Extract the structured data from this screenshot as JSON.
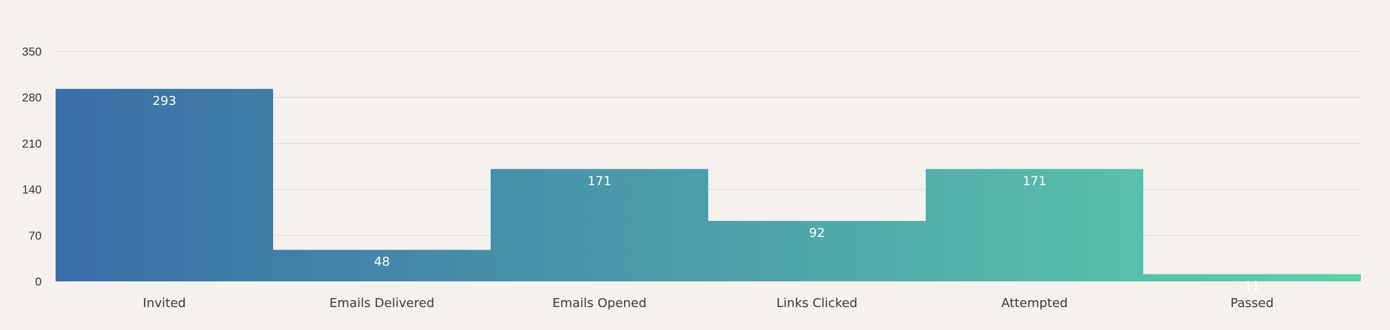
{
  "chart_data": {
    "type": "bar",
    "title": "",
    "xlabel": "",
    "ylabel": "",
    "categories": [
      "Invited",
      "Emails Delivered",
      "Emails Opened",
      "Links Clicked",
      "Attempted",
      "Passed"
    ],
    "values": [
      293,
      48,
      171,
      92,
      171,
      11
    ],
    "ylim": [
      0,
      350
    ],
    "yticks": [
      0,
      70,
      140,
      210,
      280,
      350
    ],
    "grid": true,
    "legend": "none",
    "colors": {
      "gradient_start": "#3a6ea8",
      "gradient_end": "#5ed1ab",
      "value_label": "#ffffff",
      "background": "#f5f1ed",
      "grid": "#dcd8d4"
    }
  }
}
